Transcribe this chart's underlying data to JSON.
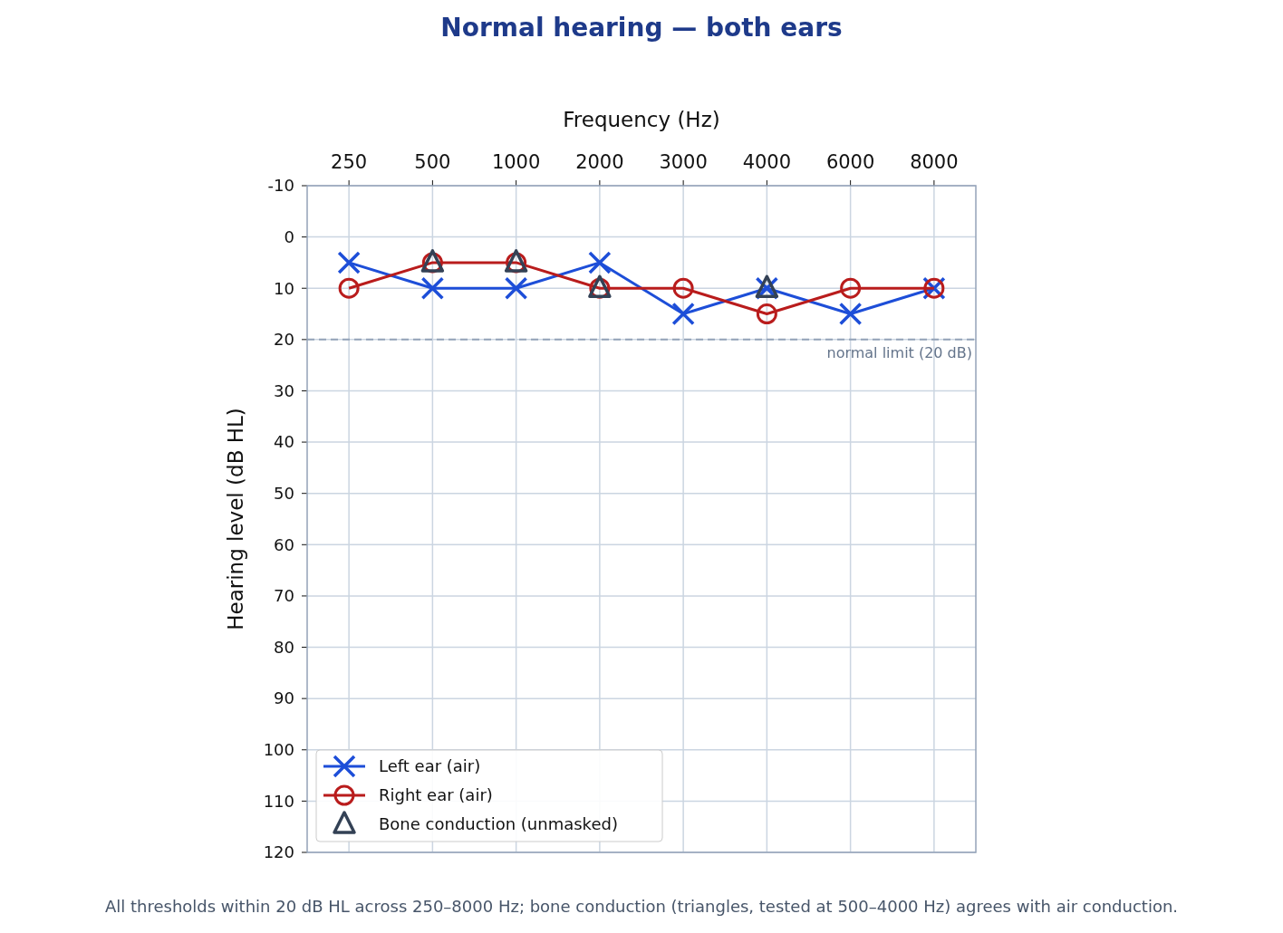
{
  "chart_data": {
    "type": "line",
    "title": "Normal hearing — both ears",
    "xlabel": "Frequency (Hz)",
    "ylabel": "Hearing level (dB HL)",
    "categories": [
      "250",
      "500",
      "1000",
      "2000",
      "3000",
      "4000",
      "6000",
      "8000"
    ],
    "series": [
      {
        "name": "Left ear (air)",
        "color": "#1d4ed8",
        "marker": "cross",
        "values": [
          5,
          10,
          10,
          5,
          15,
          10,
          15,
          10
        ]
      },
      {
        "name": "Right ear (air)",
        "color": "#b91c1c",
        "marker": "circle",
        "values": [
          10,
          5,
          5,
          10,
          10,
          15,
          10,
          10
        ]
      },
      {
        "name": "Bone conduction (unmasked)",
        "type": "scatter",
        "color": "#334155",
        "marker": "triangle",
        "values": [
          null,
          5,
          5,
          10,
          null,
          10,
          null,
          null
        ]
      }
    ],
    "ylim": [
      120,
      -10
    ],
    "yticks": [
      -10,
      0,
      10,
      20,
      30,
      40,
      50,
      60,
      70,
      80,
      90,
      100,
      110,
      120
    ],
    "grid": true,
    "legend": "bottom left",
    "ref_lines": [
      {
        "axis": "y",
        "value": 20,
        "label": "normal limit (20 dB)",
        "color": "#94a3b8",
        "line_style": "dashed"
      }
    ],
    "annotations": [
      "All thresholds within 20 dB HL across 250–8000 Hz; bone conduction (triangles, tested at 500–4000 Hz) agrees with air conduction."
    ]
  }
}
